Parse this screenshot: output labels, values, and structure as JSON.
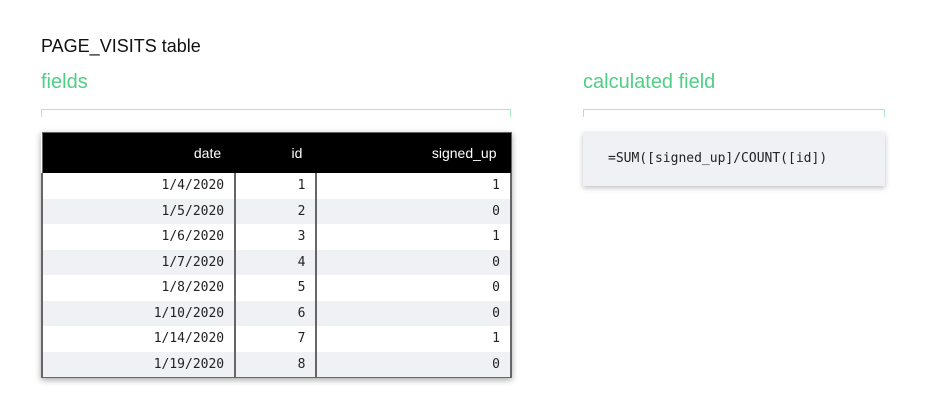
{
  "title": "PAGE_VISITS table",
  "fields_label": "fields",
  "calc_label": "calculated field",
  "accent": "#4fcf85",
  "columns": [
    "date",
    "id",
    "signed_up"
  ],
  "rows": [
    [
      "1/4/2020",
      "1",
      "1"
    ],
    [
      "1/5/2020",
      "2",
      "0"
    ],
    [
      "1/6/2020",
      "3",
      "1"
    ],
    [
      "1/7/2020",
      "4",
      "0"
    ],
    [
      "1/8/2020",
      "5",
      "0"
    ],
    [
      "1/10/2020",
      "6",
      "0"
    ],
    [
      "1/14/2020",
      "7",
      "1"
    ],
    [
      "1/19/2020",
      "8",
      "0"
    ]
  ],
  "formula": "=SUM([signed_up]/COUNT([id])"
}
